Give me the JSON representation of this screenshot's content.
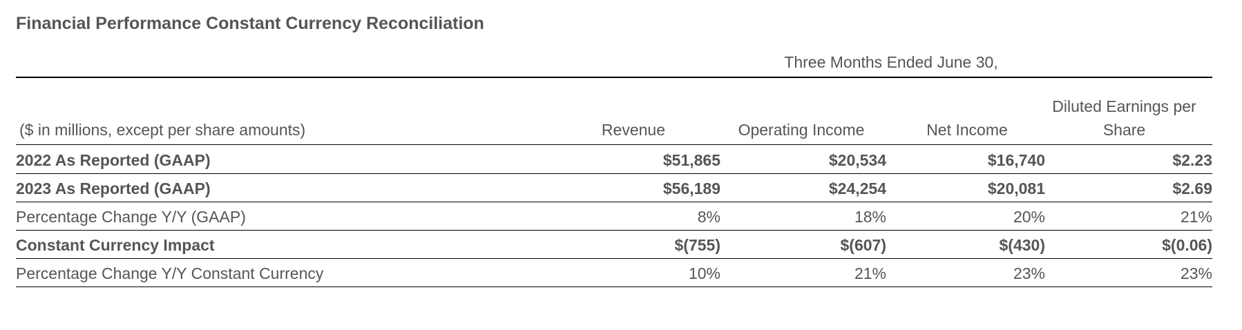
{
  "title": "Financial Performance Constant Currency Reconciliation",
  "period_header": "Three Months Ended June 30,",
  "units_note": "($ in millions, except per share amounts)",
  "columns": {
    "revenue": "Revenue",
    "operating_income": "Operating Income",
    "net_income": "Net Income",
    "eps_line1": "Diluted Earnings per",
    "eps_line2": "Share"
  },
  "rows": [
    {
      "label": "2022 As Reported (GAAP)",
      "bold": true,
      "revenue": "$51,865",
      "operating_income": "$20,534",
      "net_income": "$16,740",
      "eps": "$2.23"
    },
    {
      "label": "2023 As Reported (GAAP)",
      "bold": true,
      "revenue": "$56,189",
      "operating_income": "$24,254",
      "net_income": "$20,081",
      "eps": "$2.69"
    },
    {
      "label": "Percentage Change Y/Y (GAAP)",
      "bold": false,
      "revenue": "8%",
      "operating_income": "18%",
      "net_income": "20%",
      "eps": "21%"
    },
    {
      "label": "Constant Currency Impact",
      "bold": true,
      "revenue": "$(755)",
      "operating_income": "$(607)",
      "net_income": "$(430)",
      "eps": "$(0.06)"
    },
    {
      "label": "Percentage Change Y/Y Constant Currency",
      "bold": false,
      "revenue": "10%",
      "operating_income": "21%",
      "net_income": "23%",
      "eps": "23%"
    }
  ]
}
